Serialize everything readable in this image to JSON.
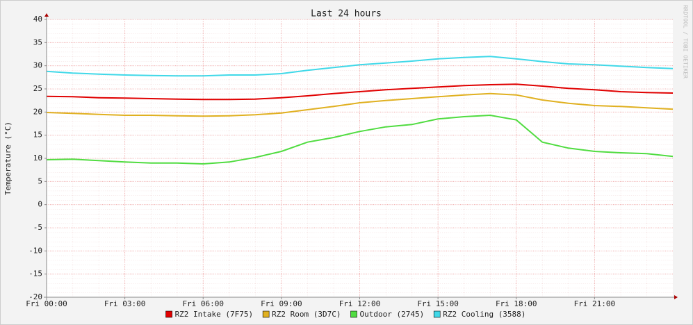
{
  "chart_data": {
    "type": "line",
    "title": "Last 24 hours",
    "y_label": "Temperature (°C)",
    "side_text": "RRDTOOL / TOBI OETIKER",
    "x": [
      0,
      1,
      2,
      3,
      4,
      5,
      6,
      7,
      8,
      9,
      10,
      11,
      12,
      13,
      14,
      15,
      16,
      17,
      18,
      19,
      20,
      21,
      22,
      23,
      24
    ],
    "xlim": [
      0,
      24
    ],
    "xticks": [
      {
        "value": 0,
        "label": "Fri 00:00"
      },
      {
        "value": 3,
        "label": "Fri 03:00"
      },
      {
        "value": 6,
        "label": "Fri 06:00"
      },
      {
        "value": 9,
        "label": "Fri 09:00"
      },
      {
        "value": 12,
        "label": "Fri 12:00"
      },
      {
        "value": 15,
        "label": "Fri 15:00"
      },
      {
        "value": 18,
        "label": "Fri 18:00"
      },
      {
        "value": 21,
        "label": "Fri 21:00"
      }
    ],
    "ylim": [
      -20,
      40
    ],
    "yticks": [
      -20,
      -15,
      -10,
      -5,
      0,
      5,
      10,
      15,
      20,
      25,
      30,
      35,
      40
    ],
    "grid": true,
    "legend": "bottom",
    "series": [
      {
        "name": "RZ2 Intake (7F75)",
        "color": "#e00000",
        "values": [
          23.4,
          23.3,
          23.1,
          23.0,
          22.9,
          22.8,
          22.7,
          22.7,
          22.8,
          23.1,
          23.5,
          24.0,
          24.4,
          24.8,
          25.1,
          25.4,
          25.7,
          25.9,
          26.0,
          25.6,
          25.1,
          24.8,
          24.4,
          24.2,
          24.1
        ]
      },
      {
        "name": "RZ2 Room (3D7C)",
        "color": "#e0b020",
        "values": [
          19.9,
          19.7,
          19.5,
          19.3,
          19.3,
          19.2,
          19.1,
          19.2,
          19.4,
          19.8,
          20.5,
          21.2,
          22.0,
          22.5,
          22.9,
          23.3,
          23.7,
          24.0,
          23.7,
          22.6,
          21.9,
          21.4,
          21.2,
          20.9,
          20.6
        ]
      },
      {
        "name": "Outdoor (2745)",
        "color": "#50dc40",
        "values": [
          9.7,
          9.8,
          9.5,
          9.2,
          9.0,
          9.0,
          8.8,
          9.2,
          10.2,
          11.5,
          13.5,
          14.5,
          15.8,
          16.8,
          17.3,
          18.5,
          19.0,
          19.3,
          18.3,
          13.5,
          12.2,
          11.5,
          11.2,
          11.0,
          10.4
        ]
      },
      {
        "name": "RZ2 Cooling (3588)",
        "color": "#40d8e8",
        "values": [
          28.8,
          28.4,
          28.2,
          28.0,
          27.9,
          27.8,
          27.8,
          28.0,
          28.0,
          28.3,
          29.0,
          29.6,
          30.2,
          30.6,
          31.0,
          31.5,
          31.8,
          32.0,
          31.5,
          30.9,
          30.4,
          30.2,
          29.9,
          29.6,
          29.4
        ]
      }
    ]
  }
}
